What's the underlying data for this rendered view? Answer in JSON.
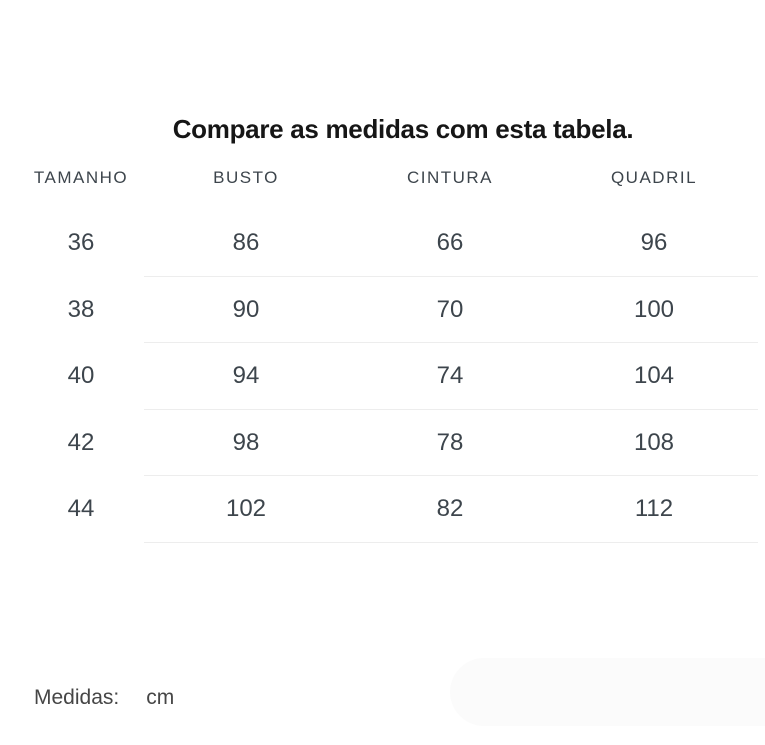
{
  "page": {
    "title": "Compare as medidas com esta tabela."
  },
  "table": {
    "headers": [
      "TAMANHO",
      "BUSTO",
      "CINTURA",
      "QUADRIL"
    ],
    "rows": [
      [
        "36",
        "86",
        "66",
        "96"
      ],
      [
        "38",
        "90",
        "70",
        "100"
      ],
      [
        "40",
        "94",
        "74",
        "104"
      ],
      [
        "42",
        "98",
        "78",
        "108"
      ],
      [
        "44",
        "102",
        "82",
        "112"
      ]
    ]
  },
  "footer": {
    "label": "Medidas:",
    "unit": "cm"
  },
  "colors": {
    "title_text": "#161616",
    "table_text": "#3d454c",
    "divider": "#ededed",
    "corner_panel": "#fbfbfb",
    "background": "#ffffff"
  }
}
